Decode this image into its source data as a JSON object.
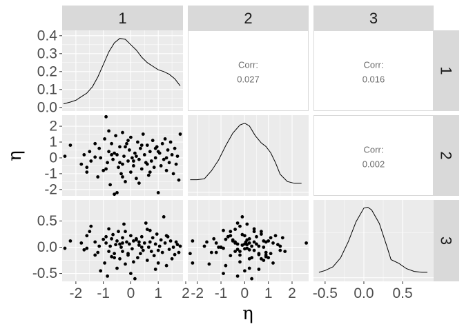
{
  "chart_data": {
    "type": "scatterplot-matrix",
    "variables": [
      "1",
      "2",
      "3"
    ],
    "xlabel": "η",
    "ylabel": "η",
    "ranges": [
      [
        -2.5,
        1.9
      ],
      [
        -2.4,
        2.7
      ],
      [
        -0.65,
        0.9
      ]
    ],
    "density_ylim": [
      -0.02,
      0.43
    ],
    "x_ticks": [
      [
        -2,
        -1,
        0,
        1,
        2
      ],
      [
        -2,
        -1,
        0,
        1,
        2
      ],
      [
        -0.5,
        0.0,
        0.5
      ]
    ],
    "x_tick_labels": [
      [
        "-2",
        "-1",
        "0",
        "1",
        "2"
      ],
      [
        "-2",
        "-1",
        "0",
        "1",
        "2"
      ],
      [
        "-0.5",
        "0.0",
        "0.5"
      ]
    ],
    "y_ticks": [
      [
        0.0,
        0.1,
        0.2,
        0.3,
        0.4
      ],
      [
        -2,
        -1,
        0,
        1,
        2
      ],
      [
        -0.5,
        0.0,
        0.5
      ]
    ],
    "y_tick_labels": [
      [
        "0.0",
        "0.1",
        "0.2",
        "0.3",
        "0.4"
      ],
      [
        "-2",
        "-1",
        "0",
        "1",
        "2"
      ],
      [
        "-0.5",
        "0.0",
        "0.5"
      ]
    ],
    "correlations": [
      {
        "row": 1,
        "col": 2,
        "label": "Corr:",
        "value": "0.027"
      },
      {
        "row": 1,
        "col": 3,
        "label": "Corr:",
        "value": "0.016"
      },
      {
        "row": 2,
        "col": 3,
        "label": "Corr:",
        "value": "0.002"
      }
    ],
    "densities": [
      {
        "variable": "1",
        "x": [
          -2.45,
          -2.2,
          -2.0,
          -1.8,
          -1.6,
          -1.4,
          -1.2,
          -1.0,
          -0.8,
          -0.6,
          -0.4,
          -0.2,
          0.0,
          0.2,
          0.4,
          0.6,
          0.8,
          1.0,
          1.2,
          1.4,
          1.6,
          1.8
        ],
        "y": [
          0.02,
          0.03,
          0.04,
          0.06,
          0.08,
          0.115,
          0.17,
          0.24,
          0.31,
          0.36,
          0.385,
          0.38,
          0.35,
          0.32,
          0.28,
          0.25,
          0.23,
          0.21,
          0.2,
          0.185,
          0.16,
          0.12
        ]
      },
      {
        "variable": "2",
        "x": [
          -2.3,
          -2.0,
          -1.7,
          -1.4,
          -1.1,
          -0.8,
          -0.5,
          -0.2,
          0.0,
          0.2,
          0.45,
          0.7,
          0.9,
          1.1,
          1.3,
          1.5,
          1.8,
          2.1,
          2.4
        ],
        "y": [
          0.07,
          0.07,
          0.075,
          0.12,
          0.18,
          0.26,
          0.33,
          0.375,
          0.385,
          0.37,
          0.315,
          0.275,
          0.255,
          0.22,
          0.165,
          0.1,
          0.06,
          0.05,
          0.05
        ]
      },
      {
        "variable": "3",
        "x": [
          -0.58,
          -0.5,
          -0.4,
          -0.3,
          -0.2,
          -0.1,
          0.0,
          0.05,
          0.1,
          0.2,
          0.3,
          0.35,
          0.45,
          0.55,
          0.65,
          0.75,
          0.82
        ],
        "y": [
          0.03,
          0.04,
          0.06,
          0.11,
          0.2,
          0.31,
          0.385,
          0.39,
          0.375,
          0.3,
          0.17,
          0.1,
          0.08,
          0.05,
          0.035,
          0.03,
          0.03
        ]
      }
    ],
    "points": [
      {
        "x1": -2.4,
        "x2": 0.1,
        "x3": -0.02
      },
      {
        "x1": -2.2,
        "x2": 0.8,
        "x3": 0.12
      },
      {
        "x1": -1.8,
        "x2": -0.4,
        "x3": 0.08
      },
      {
        "x1": -1.7,
        "x2": 0.2,
        "x3": -0.05
      },
      {
        "x1": -1.6,
        "x2": -0.6,
        "x3": 0.22
      },
      {
        "x1": -1.5,
        "x2": 0.4,
        "x3": 0.3
      },
      {
        "x1": -1.45,
        "x2": -0.2,
        "x3": 0.4
      },
      {
        "x1": -1.3,
        "x2": 0.05,
        "x3": 0.1
      },
      {
        "x1": -1.2,
        "x2": -1.2,
        "x3": -0.1
      },
      {
        "x1": -1.15,
        "x2": 0.6,
        "x3": 0.02
      },
      {
        "x1": -1.0,
        "x2": -0.8,
        "x3": 0.15
      },
      {
        "x1": -0.95,
        "x2": 1.2,
        "x3": -0.3
      },
      {
        "x1": -0.9,
        "x2": 2.6,
        "x3": 0.08
      },
      {
        "x1": -0.85,
        "x2": -0.3,
        "x3": -0.55
      },
      {
        "x1": -0.8,
        "x2": 0.4,
        "x3": 0.35
      },
      {
        "x1": -0.75,
        "x2": -1.7,
        "x3": 0.02
      },
      {
        "x1": -0.7,
        "x2": 0.9,
        "x3": -0.18
      },
      {
        "x1": -0.65,
        "x2": -0.1,
        "x3": 0.24
      },
      {
        "x1": -0.6,
        "x2": -2.3,
        "x3": -0.12
      },
      {
        "x1": -0.55,
        "x2": 1.4,
        "x3": 0.05
      },
      {
        "x1": -0.5,
        "x2": 0.2,
        "x3": -0.4
      },
      {
        "x1": -0.5,
        "x2": -2.2,
        "x3": 0.12
      },
      {
        "x1": -0.45,
        "x2": -0.6,
        "x3": 0.3
      },
      {
        "x1": -0.4,
        "x2": 0.7,
        "x3": -0.22
      },
      {
        "x1": -0.35,
        "x2": -1.0,
        "x3": 0.0
      },
      {
        "x1": -0.3,
        "x2": 1.6,
        "x3": 0.18
      },
      {
        "x1": -0.3,
        "x2": -0.4,
        "x3": -0.08
      },
      {
        "x1": -0.25,
        "x2": 0.1,
        "x3": 0.44
      },
      {
        "x1": -0.2,
        "x2": -1.5,
        "x3": -0.32
      },
      {
        "x1": -0.15,
        "x2": 0.9,
        "x3": 0.1
      },
      {
        "x1": -0.1,
        "x2": -0.2,
        "x3": -0.15
      },
      {
        "x1": -0.05,
        "x2": 0.5,
        "x3": 0.06
      },
      {
        "x1": 0.0,
        "x2": -0.9,
        "x3": -0.5
      },
      {
        "x1": 0.0,
        "x2": 1.3,
        "x3": 0.22
      },
      {
        "x1": 0.05,
        "x2": 0.0,
        "x3": -0.03
      },
      {
        "x1": 0.1,
        "x2": -0.5,
        "x3": 0.12
      },
      {
        "x1": 0.15,
        "x2": 0.3,
        "x3": -0.6
      },
      {
        "x1": 0.2,
        "x2": -1.3,
        "x3": 0.16
      },
      {
        "x1": 0.25,
        "x2": 1.0,
        "x3": -0.2
      },
      {
        "x1": 0.3,
        "x2": -0.1,
        "x3": 0.04
      },
      {
        "x1": 0.35,
        "x2": 0.6,
        "x3": -0.12
      },
      {
        "x1": 0.4,
        "x2": -0.7,
        "x3": 0.2
      },
      {
        "x1": 0.45,
        "x2": 1.5,
        "x3": -0.06
      },
      {
        "x1": 0.5,
        "x2": 0.2,
        "x3": 0.08
      },
      {
        "x1": 0.55,
        "x2": -0.3,
        "x3": 0.46
      },
      {
        "x1": 0.6,
        "x2": 0.8,
        "x3": -0.25
      },
      {
        "x1": 0.65,
        "x2": -1.1,
        "x3": 0.0
      },
      {
        "x1": 0.7,
        "x2": 0.4,
        "x3": 0.1
      },
      {
        "x1": 0.75,
        "x2": -0.2,
        "x3": -0.08
      },
      {
        "x1": 0.8,
        "x2": 1.1,
        "x3": 0.18
      },
      {
        "x1": 0.85,
        "x2": -0.6,
        "x3": -0.16
      },
      {
        "x1": 0.9,
        "x2": 0.0,
        "x3": 0.06
      },
      {
        "x1": 0.95,
        "x2": 0.7,
        "x3": 0.25
      },
      {
        "x1": 1.0,
        "x2": -2.2,
        "x3": -0.3
      },
      {
        "x1": 1.05,
        "x2": 0.3,
        "x3": 0.02
      },
      {
        "x1": 1.1,
        "x2": -0.5,
        "x3": 0.14
      },
      {
        "x1": 1.15,
        "x2": 0.9,
        "x3": -0.1
      },
      {
        "x1": 1.2,
        "x2": -0.1,
        "x3": 0.58
      },
      {
        "x1": 1.25,
        "x2": 1.2,
        "x3": 0.08
      },
      {
        "x1": 1.3,
        "x2": -0.8,
        "x3": -0.35
      },
      {
        "x1": 1.35,
        "x2": 0.5,
        "x3": 0.2
      },
      {
        "x1": 1.4,
        "x2": -0.3,
        "x3": -0.04
      },
      {
        "x1": 1.45,
        "x2": 1.0,
        "x3": 0.12
      },
      {
        "x1": 1.5,
        "x2": 0.2,
        "x3": -0.22
      },
      {
        "x1": 1.55,
        "x2": -1.0,
        "x3": 0.0
      },
      {
        "x1": 1.6,
        "x2": 0.6,
        "x3": -0.14
      },
      {
        "x1": 1.65,
        "x2": -0.4,
        "x3": 0.1
      },
      {
        "x1": 1.7,
        "x2": 0.1,
        "x3": 0.05
      },
      {
        "x1": 1.75,
        "x2": -1.4,
        "x3": -0.1
      },
      {
        "x1": 1.8,
        "x2": 1.5,
        "x3": 0.02
      },
      {
        "x1": -1.1,
        "x2": 0.0,
        "x3": -0.45
      },
      {
        "x1": -0.9,
        "x2": -0.7,
        "x3": 0.2
      },
      {
        "x1": -0.6,
        "x2": 0.3,
        "x3": -0.2
      },
      {
        "x1": -0.2,
        "x2": 0.7,
        "x3": 0.3
      },
      {
        "x1": 0.1,
        "x2": -0.2,
        "x3": -0.28
      },
      {
        "x1": 0.4,
        "x2": 0.8,
        "x3": 0.0
      },
      {
        "x1": 0.7,
        "x2": -0.9,
        "x3": 0.32
      },
      {
        "x1": -1.3,
        "x2": 0.9,
        "x3": -0.15
      },
      {
        "x1": -0.4,
        "x2": -0.3,
        "x3": 0.06
      },
      {
        "x1": 0.2,
        "x2": 0.1,
        "x3": 0.14
      },
      {
        "x1": 1.0,
        "x2": 0.4,
        "x3": -0.06
      },
      {
        "x1": -0.7,
        "x2": 0.2,
        "x3": 0.16
      },
      {
        "x1": 0.6,
        "x2": -0.4,
        "x3": 0.34
      },
      {
        "x1": -0.1,
        "x2": 1.1,
        "x3": -0.12
      },
      {
        "x1": 1.3,
        "x2": 0.0,
        "x3": 0.22
      },
      {
        "x1": -1.6,
        "x2": -0.9,
        "x3": -0.02
      },
      {
        "x1": 0.3,
        "x2": -1.6,
        "x3": 0.1
      },
      {
        "x1": -0.8,
        "x2": 1.7,
        "x3": -0.08
      },
      {
        "x1": 0.9,
        "x2": 0.6,
        "x3": -0.42
      },
      {
        "x1": -0.3,
        "x2": -1.2,
        "x3": 0.08
      }
    ]
  }
}
